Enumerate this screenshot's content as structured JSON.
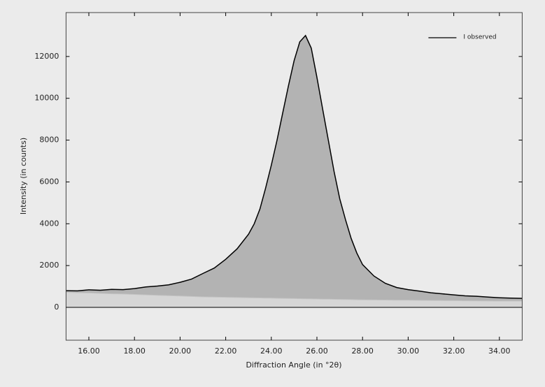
{
  "chart_data": {
    "type": "area",
    "x_label": "Diffraction Angle (in °2θ)",
    "y_label": "Intensity (in counts)",
    "x": [
      15,
      15.5,
      16,
      16.5,
      17,
      17.5,
      18,
      18.5,
      19,
      19.5,
      20,
      20.5,
      21,
      21.5,
      22,
      22.5,
      23,
      23.25,
      23.5,
      23.75,
      24,
      24.25,
      24.5,
      24.75,
      25,
      25.25,
      25.5,
      25.75,
      26,
      26.25,
      26.5,
      26.75,
      27,
      27.25,
      27.5,
      27.75,
      28,
      28.5,
      29,
      29.5,
      30,
      30.5,
      31,
      31.5,
      32,
      32.5,
      33,
      33.5,
      34,
      34.5,
      35
    ],
    "series": [
      {
        "name": "I observed",
        "color": "#000000",
        "fill": "#b3b3b3",
        "values": [
          800,
          790,
          840,
          820,
          860,
          850,
          900,
          980,
          1020,
          1080,
          1200,
          1350,
          1620,
          1880,
          2300,
          2800,
          3500,
          4000,
          4700,
          5700,
          6800,
          8000,
          9300,
          10600,
          11800,
          12700,
          13000,
          12400,
          11000,
          9500,
          8000,
          6500,
          5200,
          4200,
          3300,
          2600,
          2050,
          1500,
          1150,
          950,
          850,
          780,
          700,
          650,
          600,
          550,
          530,
          490,
          460,
          440,
          430
        ]
      }
    ],
    "background": {
      "color": "#d6d6d6",
      "values": [
        720,
        700,
        690,
        670,
        650,
        640,
        620,
        600,
        580,
        560,
        540,
        520,
        500,
        490,
        480,
        470,
        460,
        455,
        450,
        445,
        440,
        435,
        430,
        425,
        420,
        415,
        410,
        405,
        400,
        395,
        390,
        385,
        380,
        375,
        370,
        365,
        360,
        355,
        350,
        345,
        340,
        335,
        330,
        325,
        320,
        315,
        310,
        305,
        300,
        300,
        300
      ]
    },
    "xlim": [
      15,
      35
    ],
    "ylim": [
      -1570,
      14100
    ],
    "xticks": [
      {
        "value": 16,
        "label": "16.00"
      },
      {
        "value": 18,
        "label": "18.00"
      },
      {
        "value": 20,
        "label": "20.00"
      },
      {
        "value": 22,
        "label": "22.00"
      },
      {
        "value": 24,
        "label": "24.00"
      },
      {
        "value": 26,
        "label": "26.00"
      },
      {
        "value": 28,
        "label": "28.00"
      },
      {
        "value": 30,
        "label": "30.00"
      },
      {
        "value": 32,
        "label": "32.00"
      },
      {
        "value": 34,
        "label": "34.00"
      }
    ],
    "yticks": [
      0,
      2000,
      4000,
      6000,
      8000,
      10000,
      12000
    ],
    "legend": "top-right"
  }
}
